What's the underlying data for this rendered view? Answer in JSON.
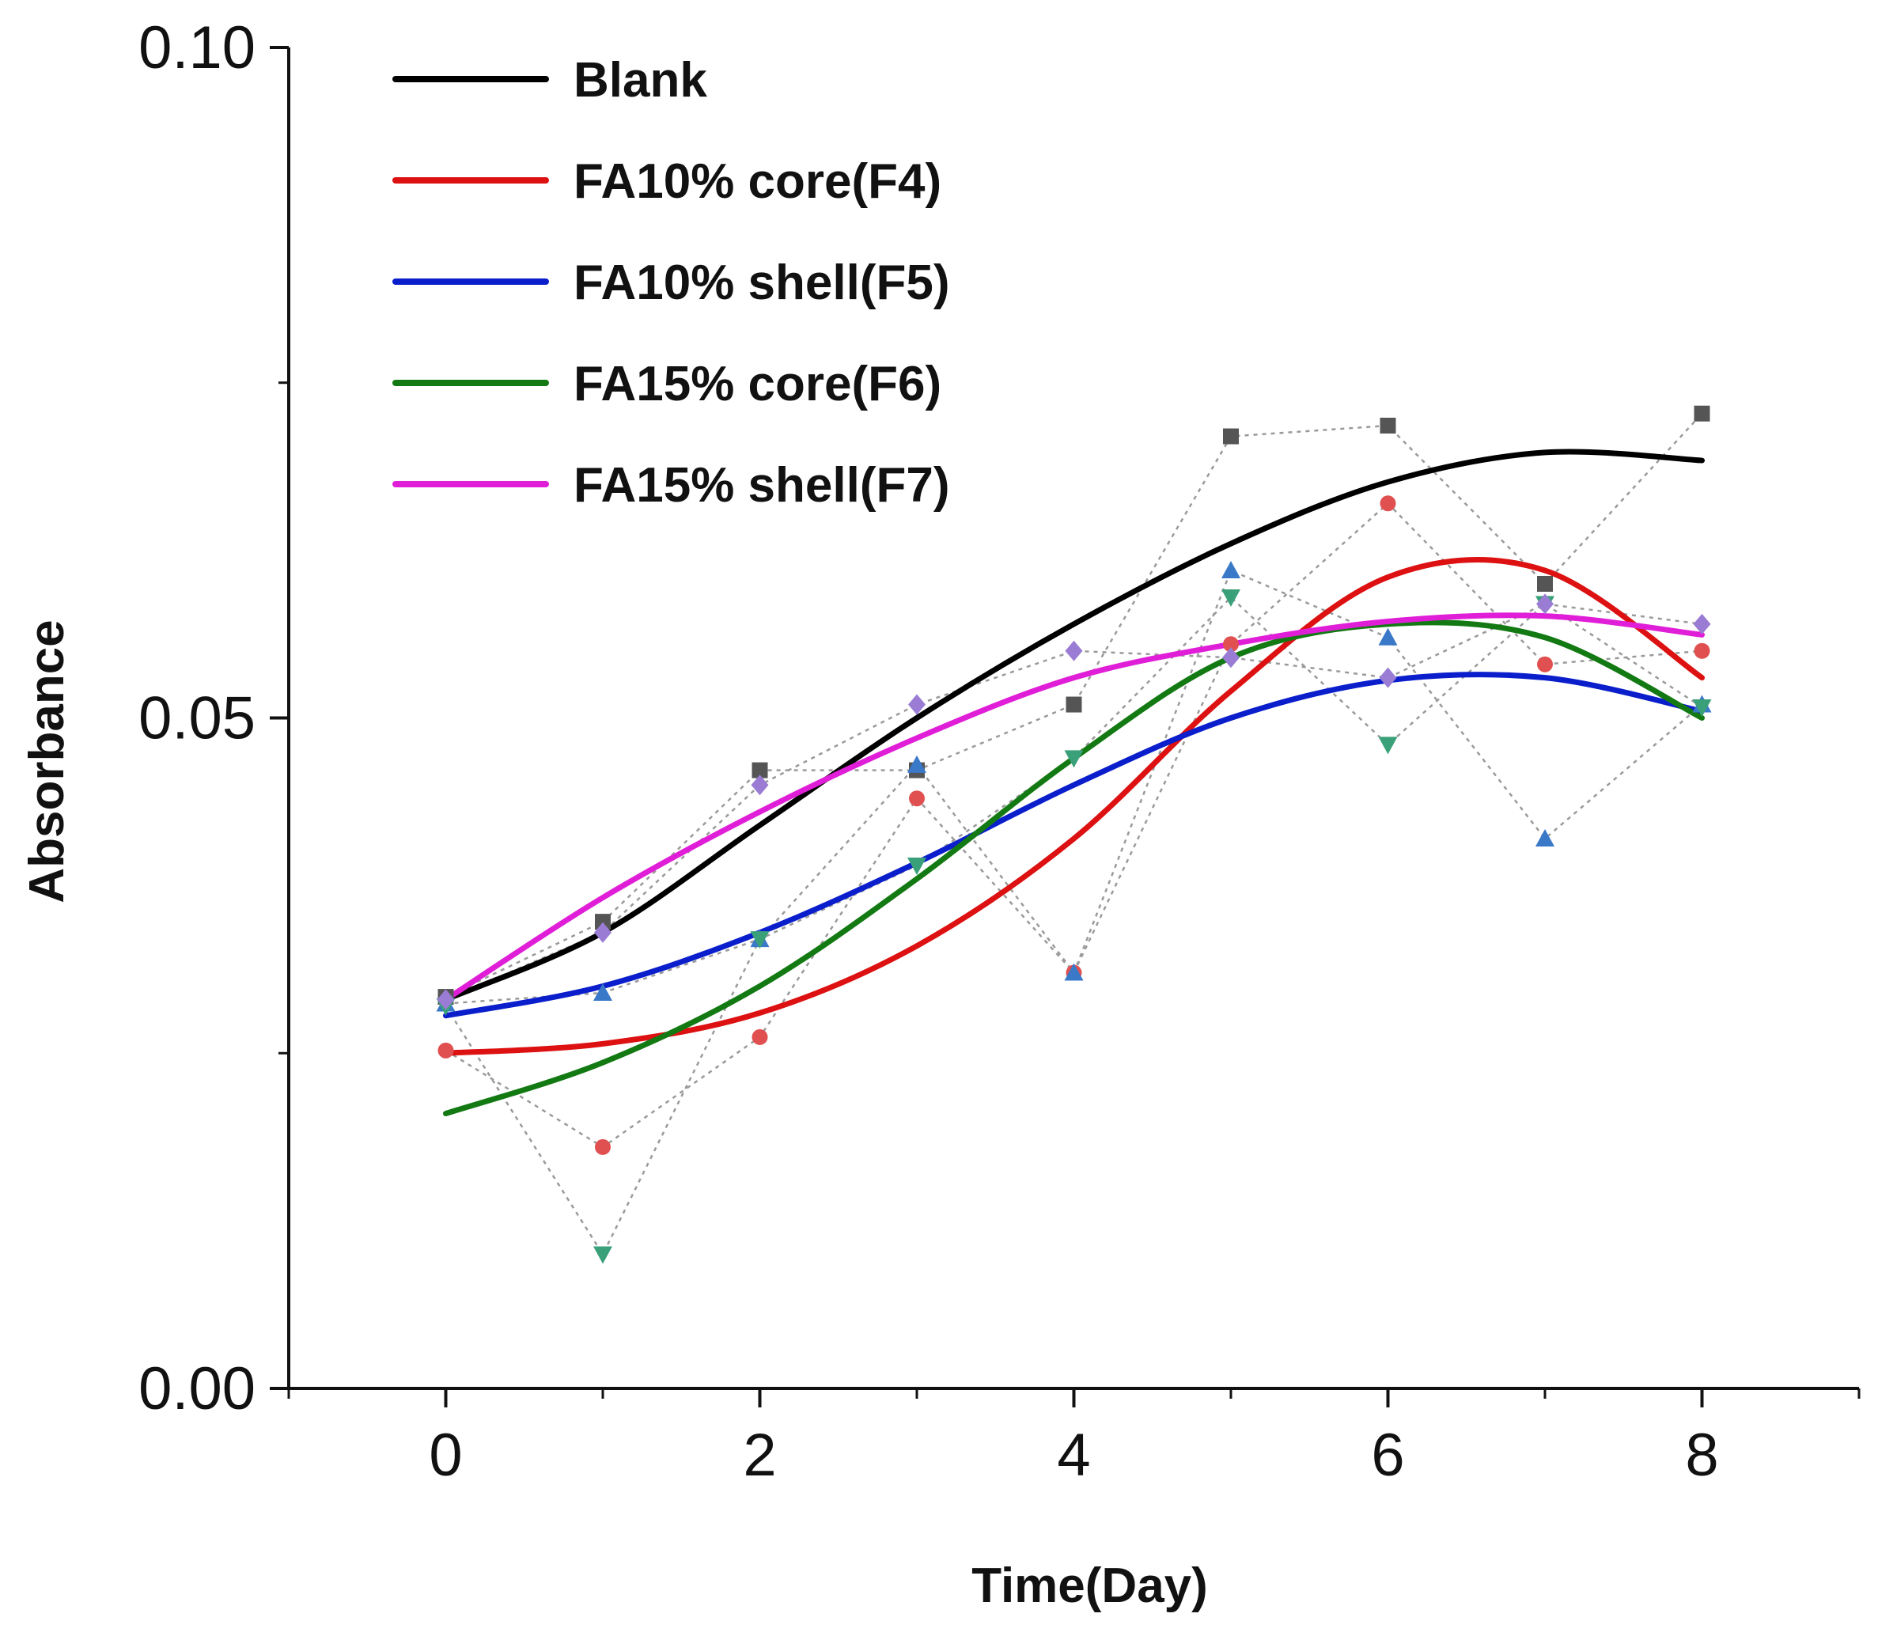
{
  "chart_data": {
    "type": "line",
    "title": "",
    "xlabel": "Time(Day)",
    "ylabel": "Absorbance",
    "xlim": [
      -1,
      9
    ],
    "ylim": [
      0.0,
      0.1
    ],
    "x_ticks": [
      0,
      2,
      4,
      6,
      8
    ],
    "x_tick_labels": [
      "0",
      "2",
      "4",
      "6",
      "8"
    ],
    "y_ticks": [
      0.0,
      0.05,
      0.1
    ],
    "y_tick_labels": [
      "0.00",
      "0.05",
      "0.10"
    ],
    "legend_position": "top-left",
    "grid": false,
    "markers_x": [
      0,
      1,
      2,
      3,
      4,
      5,
      6,
      7,
      8
    ],
    "series": [
      {
        "name": "Blank",
        "color": "#000000",
        "marker": "square",
        "marker_color": "#555555",
        "values": [
          0.0292,
          0.0348,
          0.0461,
          0.0461,
          0.051,
          0.071,
          0.0718,
          0.06,
          0.0727
        ],
        "fit": [
          0.029,
          0.034,
          0.042,
          0.05,
          0.057,
          0.063,
          0.0676,
          0.0698,
          0.0692
        ]
      },
      {
        "name": "FA10% core(F4)",
        "color": "#dd1111",
        "marker": "circle",
        "marker_color": "#e05050",
        "values": [
          0.0252,
          0.018,
          0.0262,
          0.044,
          0.031,
          0.0555,
          0.066,
          0.054,
          0.055
        ],
        "fit": [
          0.025,
          0.0257,
          0.028,
          0.033,
          0.041,
          0.052,
          0.0605,
          0.061,
          0.053
        ]
      },
      {
        "name": "FA10% shell(F5)",
        "color": "#0a1ecc",
        "marker": "triangle-up",
        "marker_color": "#3a78c8",
        "values": [
          0.0287,
          0.0295,
          0.0335,
          0.0465,
          0.031,
          0.061,
          0.056,
          0.041,
          0.051
        ],
        "fit": [
          0.0278,
          0.03,
          0.034,
          0.0392,
          0.045,
          0.05,
          0.0528,
          0.053,
          0.0505
        ]
      },
      {
        "name": "FA15% core(F6)",
        "color": "#137a13",
        "marker": "triangle-down",
        "marker_color": "#3aa07a",
        "values": [
          0.0285,
          0.01,
          0.0335,
          0.039,
          0.047,
          0.059,
          0.048,
          0.0585,
          0.0508
        ],
        "fit": [
          0.0205,
          0.0243,
          0.03,
          0.038,
          0.047,
          0.0545,
          0.057,
          0.056,
          0.05
        ]
      },
      {
        "name": "FA15% shell(F7)",
        "color": "#e01ed8",
        "marker": "diamond",
        "marker_color": "#9a7cd4",
        "values": [
          0.029,
          0.034,
          0.045,
          0.051,
          0.055,
          0.0545,
          0.053,
          0.0585,
          0.057
        ],
        "fit": [
          0.029,
          0.0366,
          0.043,
          0.0485,
          0.053,
          0.0555,
          0.0572,
          0.0576,
          0.0562
        ]
      }
    ]
  }
}
